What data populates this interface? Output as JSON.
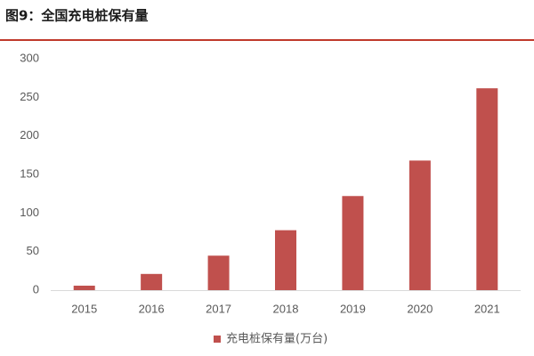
{
  "chart_data": {
    "type": "bar",
    "title": "图9：全国充电桩保有量",
    "categories": [
      "2015",
      "2016",
      "2017",
      "2018",
      "2019",
      "2020",
      "2021"
    ],
    "series": [
      {
        "name": "充电桩保有量(万台)",
        "color": "#c0504d",
        "values": [
          5.8,
          21,
          44.7,
          77.7,
          122,
          168,
          261.7
        ]
      }
    ],
    "ylim": [
      0,
      300
    ],
    "yticks": [
      0,
      50,
      100,
      150,
      200,
      250,
      300
    ],
    "grid": false,
    "legend": "bottom"
  }
}
